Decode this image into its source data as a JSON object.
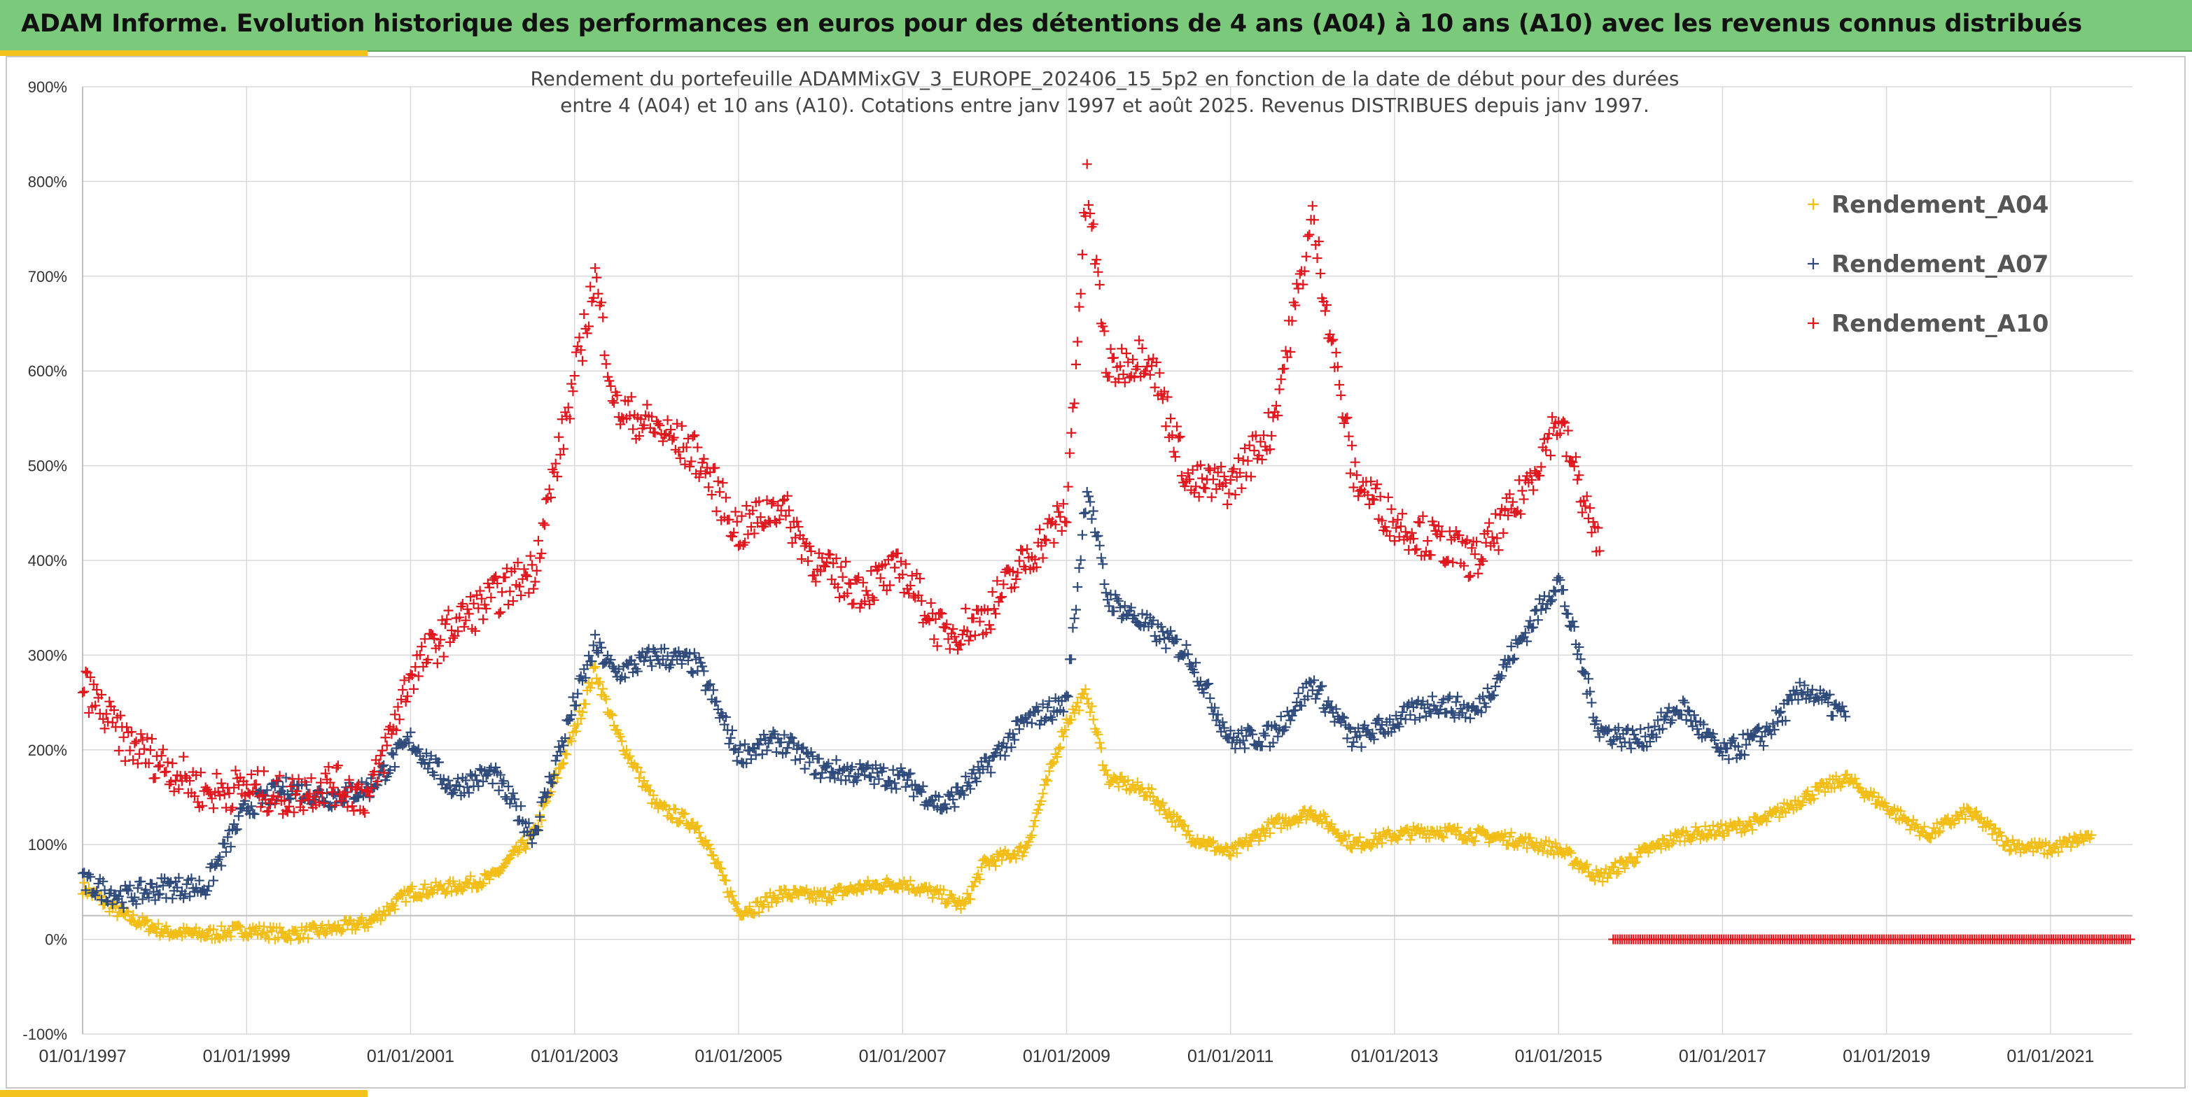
{
  "header": {
    "title": "ADAM Informe. Evolution historique des performances en euros pour des détentions de 4 ans (A04) à 10 ans (A10) avec les revenus connus distribués"
  },
  "colors": {
    "banner": "#7bc97b",
    "accent_gold": "#f3c21b",
    "A04": "#f2be16",
    "A07": "#2e4a7a",
    "A10": "#e0161c"
  },
  "chart_data": {
    "type": "scatter",
    "title_line1": "Rendement du portefeuille ADAMMixGV_3_EUROPE_202406_15_5p2  en fonction de la date de début pour des durées",
    "title_line2": "entre 4 (A04) et 10 ans (A10). Cotations entre janv 1997 et août 2025. Revenus DISTRIBUES depuis janv 1997.",
    "xlabel": "",
    "ylabel": "",
    "xlim": [
      "1997-01-01",
      "2022-01-01"
    ],
    "ylim": [
      -100,
      900
    ],
    "y_ticks": [
      "-100%",
      "0%",
      "100%",
      "200%",
      "300%",
      "400%",
      "500%",
      "600%",
      "700%",
      "800%",
      "900%"
    ],
    "x_ticks": [
      "01/01/1997",
      "01/01/1999",
      "01/01/2001",
      "01/01/2003",
      "01/01/2005",
      "01/01/2007",
      "01/01/2009",
      "01/01/2011",
      "01/01/2013",
      "01/01/2015",
      "01/01/2017",
      "01/01/2019",
      "01/01/2021"
    ],
    "grid": true,
    "legend_position": "top-right",
    "marker": "+",
    "series": [
      {
        "name": "Rendement_A04",
        "color": "#f2be16",
        "x": [
          "1997-01",
          "1997-07",
          "1998-01",
          "1998-07",
          "1999-01",
          "1999-07",
          "2000-01",
          "2000-07",
          "2001-01",
          "2001-07",
          "2002-01",
          "2002-07",
          "2003-01",
          "2003-04",
          "2003-07",
          "2004-01",
          "2004-07",
          "2005-01",
          "2005-04",
          "2005-07",
          "2006-01",
          "2006-07",
          "2007-01",
          "2007-07",
          "2007-10",
          "2008-01",
          "2008-07",
          "2009-01",
          "2009-04",
          "2009-07",
          "2010-01",
          "2010-07",
          "2011-01",
          "2011-07",
          "2012-01",
          "2012-07",
          "2013-01",
          "2013-07",
          "2014-01",
          "2014-07",
          "2015-01",
          "2015-07",
          "2016-01",
          "2016-07",
          "2017-01",
          "2017-07",
          "2018-01",
          "2018-07",
          "2019-01",
          "2019-07",
          "2020-01",
          "2020-07",
          "2021-01",
          "2021-07"
        ],
        "y": [
          55,
          25,
          8,
          5,
          10,
          5,
          10,
          18,
          50,
          55,
          65,
          110,
          220,
          285,
          220,
          140,
          120,
          30,
          35,
          48,
          45,
          55,
          60,
          45,
          35,
          80,
          95,
          230,
          260,
          170,
          155,
          110,
          90,
          120,
          135,
          100,
          110,
          115,
          110,
          105,
          95,
          65,
          90,
          110,
          115,
          125,
          150,
          170,
          140,
          110,
          135,
          100,
          95,
          110
        ]
      },
      {
        "name": "Rendement_A07",
        "color": "#2e4a7a",
        "x": [
          "1997-01",
          "1997-07",
          "1998-01",
          "1998-07",
          "1999-01",
          "1999-07",
          "2000-01",
          "2000-07",
          "2001-01",
          "2001-07",
          "2002-01",
          "2002-07",
          "2003-01",
          "2003-04",
          "2003-07",
          "2004-01",
          "2004-07",
          "2005-01",
          "2005-07",
          "2006-01",
          "2006-07",
          "2007-01",
          "2007-07",
          "2008-01",
          "2008-07",
          "2009-01",
          "2009-04",
          "2009-07",
          "2010-01",
          "2010-07",
          "2011-01",
          "2011-07",
          "2012-01",
          "2012-07",
          "2013-01",
          "2013-07",
          "2014-01",
          "2014-07",
          "2015-01",
          "2015-07",
          "2016-01",
          "2016-07",
          "2017-01",
          "2017-07",
          "2018-01",
          "2018-07"
        ],
        "y": [
          60,
          45,
          55,
          55,
          140,
          160,
          150,
          160,
          210,
          160,
          175,
          110,
          250,
          310,
          280,
          300,
          290,
          195,
          210,
          180,
          175,
          170,
          140,
          180,
          230,
          250,
          480,
          360,
          330,
          300,
          210,
          215,
          270,
          210,
          230,
          250,
          240,
          310,
          380,
          220,
          210,
          245,
          195,
          215,
          265,
          235
        ]
      },
      {
        "name": "Rendement_A10",
        "color": "#e0161c",
        "x": [
          "1997-01",
          "1997-07",
          "1998-01",
          "1998-07",
          "1999-01",
          "1999-07",
          "2000-01",
          "2000-07",
          "2001-01",
          "2001-07",
          "2002-01",
          "2002-07",
          "2003-01",
          "2003-04",
          "2003-07",
          "2004-01",
          "2004-07",
          "2005-01",
          "2005-07",
          "2006-01",
          "2006-07",
          "2007-01",
          "2007-07",
          "2008-01",
          "2008-07",
          "2009-01",
          "2009-04",
          "2009-07",
          "2010-01",
          "2010-07",
          "2011-01",
          "2011-07",
          "2012-01",
          "2012-07",
          "2013-01",
          "2013-07",
          "2014-01",
          "2014-07",
          "2015-01",
          "2015-07"
        ],
        "y": [
          270,
          210,
          185,
          155,
          160,
          150,
          165,
          150,
          280,
          330,
          360,
          390,
          590,
          700,
          560,
          540,
          510,
          430,
          460,
          390,
          370,
          390,
          320,
          340,
          400,
          450,
          800,
          600,
          620,
          480,
          480,
          540,
          760,
          490,
          440,
          420,
          400,
          460,
          550,
          410
        ]
      },
      {
        "name": "",
        "color": "#e0161c",
        "x": [
          "2015-09",
          "2022-01"
        ],
        "y": [
          0,
          0
        ]
      }
    ]
  }
}
